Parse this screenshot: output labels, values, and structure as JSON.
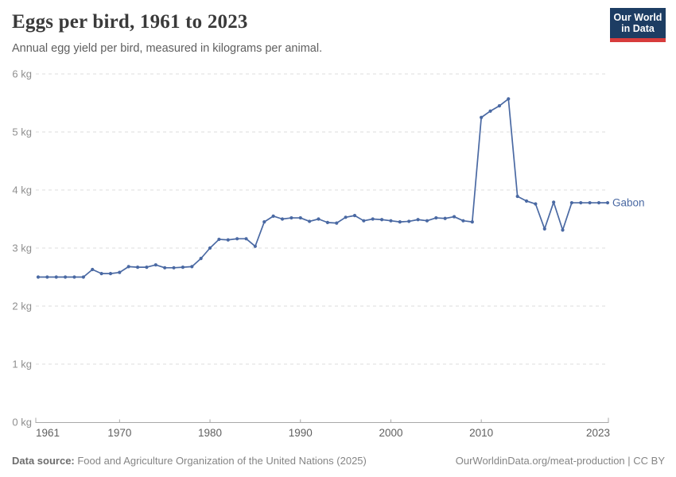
{
  "header": {
    "title": "Eggs per bird, 1961 to 2023",
    "subtitle": "Annual egg yield per bird, measured in kilograms per animal.",
    "logo": {
      "line1": "Our World",
      "line2": "in Data"
    }
  },
  "footer": {
    "source_label": "Data source:",
    "source_text": " Food and Agriculture Organization of the United Nations (2025)",
    "right_text": "OurWorldinData.org/meat-production | CC BY"
  },
  "colors": {
    "series_blue": "#4a69a3",
    "logo_navy": "#1d3d63",
    "logo_red": "#d73c3c",
    "gridline": "#dddddd",
    "axis": "#a8a8a8",
    "ytick_text": "#8f8f8f",
    "xtick_text": "#606060"
  },
  "chart_data": {
    "type": "line",
    "title": "Eggs per bird, 1961 to 2023",
    "subtitle": "Annual egg yield per bird, measured in kilograms per animal.",
    "unit": "kg",
    "xlim": [
      1961,
      2023
    ],
    "ylim": [
      0,
      6
    ],
    "grid": "horizontal-dashed",
    "legend_position": "end-of-line-label",
    "yticks": [
      0,
      1,
      2,
      3,
      4,
      5,
      6
    ],
    "ytick_labels": [
      "0 kg",
      "1 kg",
      "2 kg",
      "3 kg",
      "4 kg",
      "5 kg",
      "6 kg"
    ],
    "xticks": [
      1961,
      1970,
      1980,
      1990,
      2000,
      2010,
      2023
    ],
    "xtick_labels": [
      "1961",
      "1970",
      "1980",
      "1990",
      "2000",
      "2010",
      "2023"
    ],
    "series": [
      {
        "name": "Gabon",
        "x": [
          1961,
          1962,
          1963,
          1964,
          1965,
          1966,
          1967,
          1968,
          1969,
          1970,
          1971,
          1972,
          1973,
          1974,
          1975,
          1976,
          1977,
          1978,
          1979,
          1980,
          1981,
          1982,
          1983,
          1984,
          1985,
          1986,
          1987,
          1988,
          1989,
          1990,
          1991,
          1992,
          1993,
          1994,
          1995,
          1996,
          1997,
          1998,
          1999,
          2000,
          2001,
          2002,
          2003,
          2004,
          2005,
          2006,
          2007,
          2008,
          2009,
          2010,
          2011,
          2012,
          2013,
          2014,
          2015,
          2016,
          2017,
          2018,
          2019,
          2020,
          2021,
          2022,
          2023
        ],
        "values": [
          2.5,
          2.5,
          2.5,
          2.5,
          2.5,
          2.5,
          2.63,
          2.56,
          2.56,
          2.58,
          2.68,
          2.67,
          2.67,
          2.71,
          2.66,
          2.66,
          2.67,
          2.68,
          2.82,
          3.0,
          3.15,
          3.14,
          3.16,
          3.16,
          3.03,
          3.45,
          3.55,
          3.5,
          3.52,
          3.52,
          3.46,
          3.5,
          3.44,
          3.43,
          3.53,
          3.56,
          3.47,
          3.5,
          3.49,
          3.47,
          3.45,
          3.46,
          3.49,
          3.47,
          3.52,
          3.51,
          3.54,
          3.47,
          3.45,
          5.25,
          5.36,
          5.45,
          5.57,
          3.89,
          3.81,
          3.76,
          3.33,
          3.79,
          3.31,
          3.78,
          3.78,
          3.78,
          3.78
        ]
      }
    ]
  }
}
